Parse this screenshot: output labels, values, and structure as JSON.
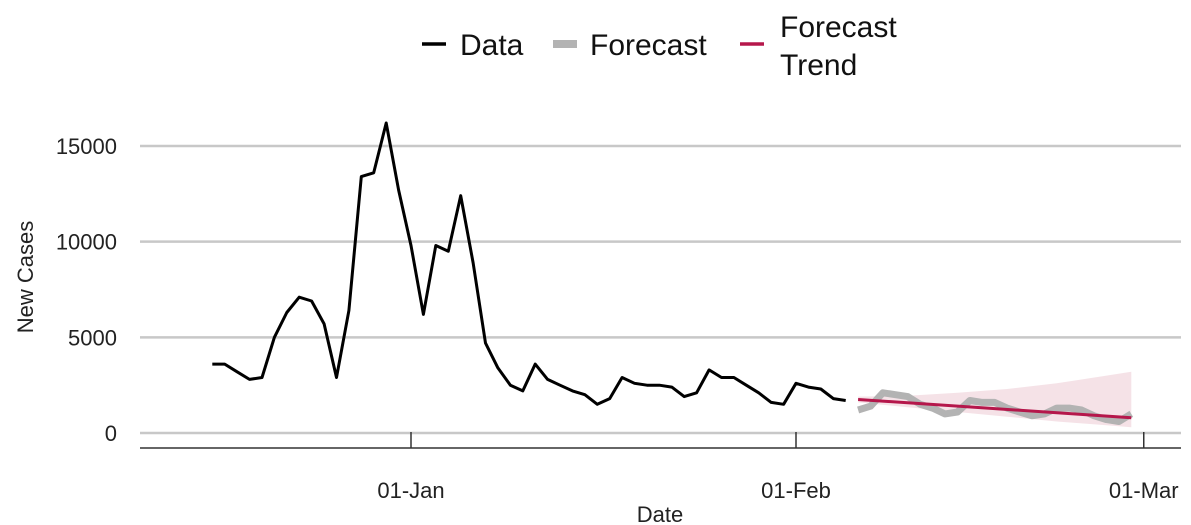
{
  "chart_data": {
    "type": "line",
    "xlabel": "Date",
    "ylabel": "New Cases",
    "ylim": [
      0,
      17000
    ],
    "yticks": [
      0,
      5000,
      10000,
      15000
    ],
    "ytick_labels": [
      "0",
      "5000",
      "10000",
      "15000"
    ],
    "xlim": [
      "2021-12-11",
      "2022-03-02"
    ],
    "xticks": [
      "2022-01-01",
      "2022-02-01",
      "2022-03-01"
    ],
    "xtick_labels": [
      "01-Jan",
      "01-Feb",
      "01-Mar"
    ],
    "grid": "horizontal",
    "legend_position": "top",
    "legend": [
      {
        "label": "Data",
        "color": "#000000"
      },
      {
        "label": "Forecast",
        "color": "#b3b3b3"
      },
      {
        "label": "Forecast Trend",
        "label_lines": [
          "Forecast",
          "Trend"
        ],
        "color": "#b5174b"
      }
    ],
    "series": [
      {
        "name": "Data",
        "color": "#000000",
        "x": [
          "2021-12-16",
          "2021-12-17",
          "2021-12-18",
          "2021-12-19",
          "2021-12-20",
          "2021-12-21",
          "2021-12-22",
          "2021-12-23",
          "2021-12-24",
          "2021-12-25",
          "2021-12-26",
          "2021-12-27",
          "2021-12-28",
          "2021-12-29",
          "2021-12-30",
          "2021-12-31",
          "2022-01-01",
          "2022-01-02",
          "2022-01-03",
          "2022-01-04",
          "2022-01-05",
          "2022-01-06",
          "2022-01-07",
          "2022-01-08",
          "2022-01-09",
          "2022-01-10",
          "2022-01-11",
          "2022-01-12",
          "2022-01-13",
          "2022-01-14",
          "2022-01-15",
          "2022-01-16",
          "2022-01-17",
          "2022-01-18",
          "2022-01-19",
          "2022-01-20",
          "2022-01-21",
          "2022-01-22",
          "2022-01-23",
          "2022-01-24",
          "2022-01-25",
          "2022-01-26",
          "2022-01-27",
          "2022-01-28",
          "2022-01-29",
          "2022-01-30",
          "2022-01-31",
          "2022-02-01",
          "2022-02-02",
          "2022-02-03",
          "2022-02-04",
          "2022-02-05"
        ],
        "values": [
          3600,
          3600,
          3200,
          2800,
          2900,
          5000,
          6300,
          7100,
          6900,
          5700,
          2900,
          6400,
          13400,
          13600,
          16200,
          12700,
          9800,
          6200,
          9800,
          9500,
          12400,
          8900,
          4700,
          3400,
          2500,
          2200,
          3600,
          2800,
          2500,
          2200,
          2000,
          1500,
          1800,
          2900,
          2600,
          2500,
          2500,
          2400,
          1900,
          2100,
          3300,
          2900,
          2900,
          2500,
          2100,
          1600,
          1500,
          2600,
          2400,
          2300,
          1800,
          1700
        ]
      },
      {
        "name": "Forecast",
        "color": "#b3b3b3",
        "x": [
          "2022-02-06",
          "2022-02-07",
          "2022-02-08",
          "2022-02-09",
          "2022-02-10",
          "2022-02-11",
          "2022-02-12",
          "2022-02-13",
          "2022-02-14",
          "2022-02-15",
          "2022-02-16",
          "2022-02-17",
          "2022-02-18",
          "2022-02-19",
          "2022-02-20",
          "2022-02-21",
          "2022-02-22",
          "2022-02-23",
          "2022-02-24",
          "2022-02-25",
          "2022-02-26",
          "2022-02-27",
          "2022-02-28"
        ],
        "values": [
          1200,
          1400,
          2100,
          2000,
          1900,
          1500,
          1300,
          1000,
          1100,
          1700,
          1600,
          1600,
          1300,
          1100,
          900,
          1000,
          1300,
          1300,
          1200,
          900,
          700,
          600,
          1000
        ]
      },
      {
        "name": "Forecast Trend",
        "color": "#b5174b",
        "x": [
          "2022-02-06",
          "2022-02-28"
        ],
        "values": [
          1750,
          800
        ]
      }
    ],
    "confidence_band": {
      "color": "#f3dde3",
      "x": [
        "2022-02-06",
        "2022-02-10",
        "2022-02-14",
        "2022-02-18",
        "2022-02-22",
        "2022-02-26",
        "2022-02-28"
      ],
      "upper": [
        1900,
        1950,
        2100,
        2300,
        2600,
        3000,
        3200
      ],
      "lower": [
        1600,
        1350,
        1100,
        850,
        600,
        400,
        300
      ]
    }
  }
}
